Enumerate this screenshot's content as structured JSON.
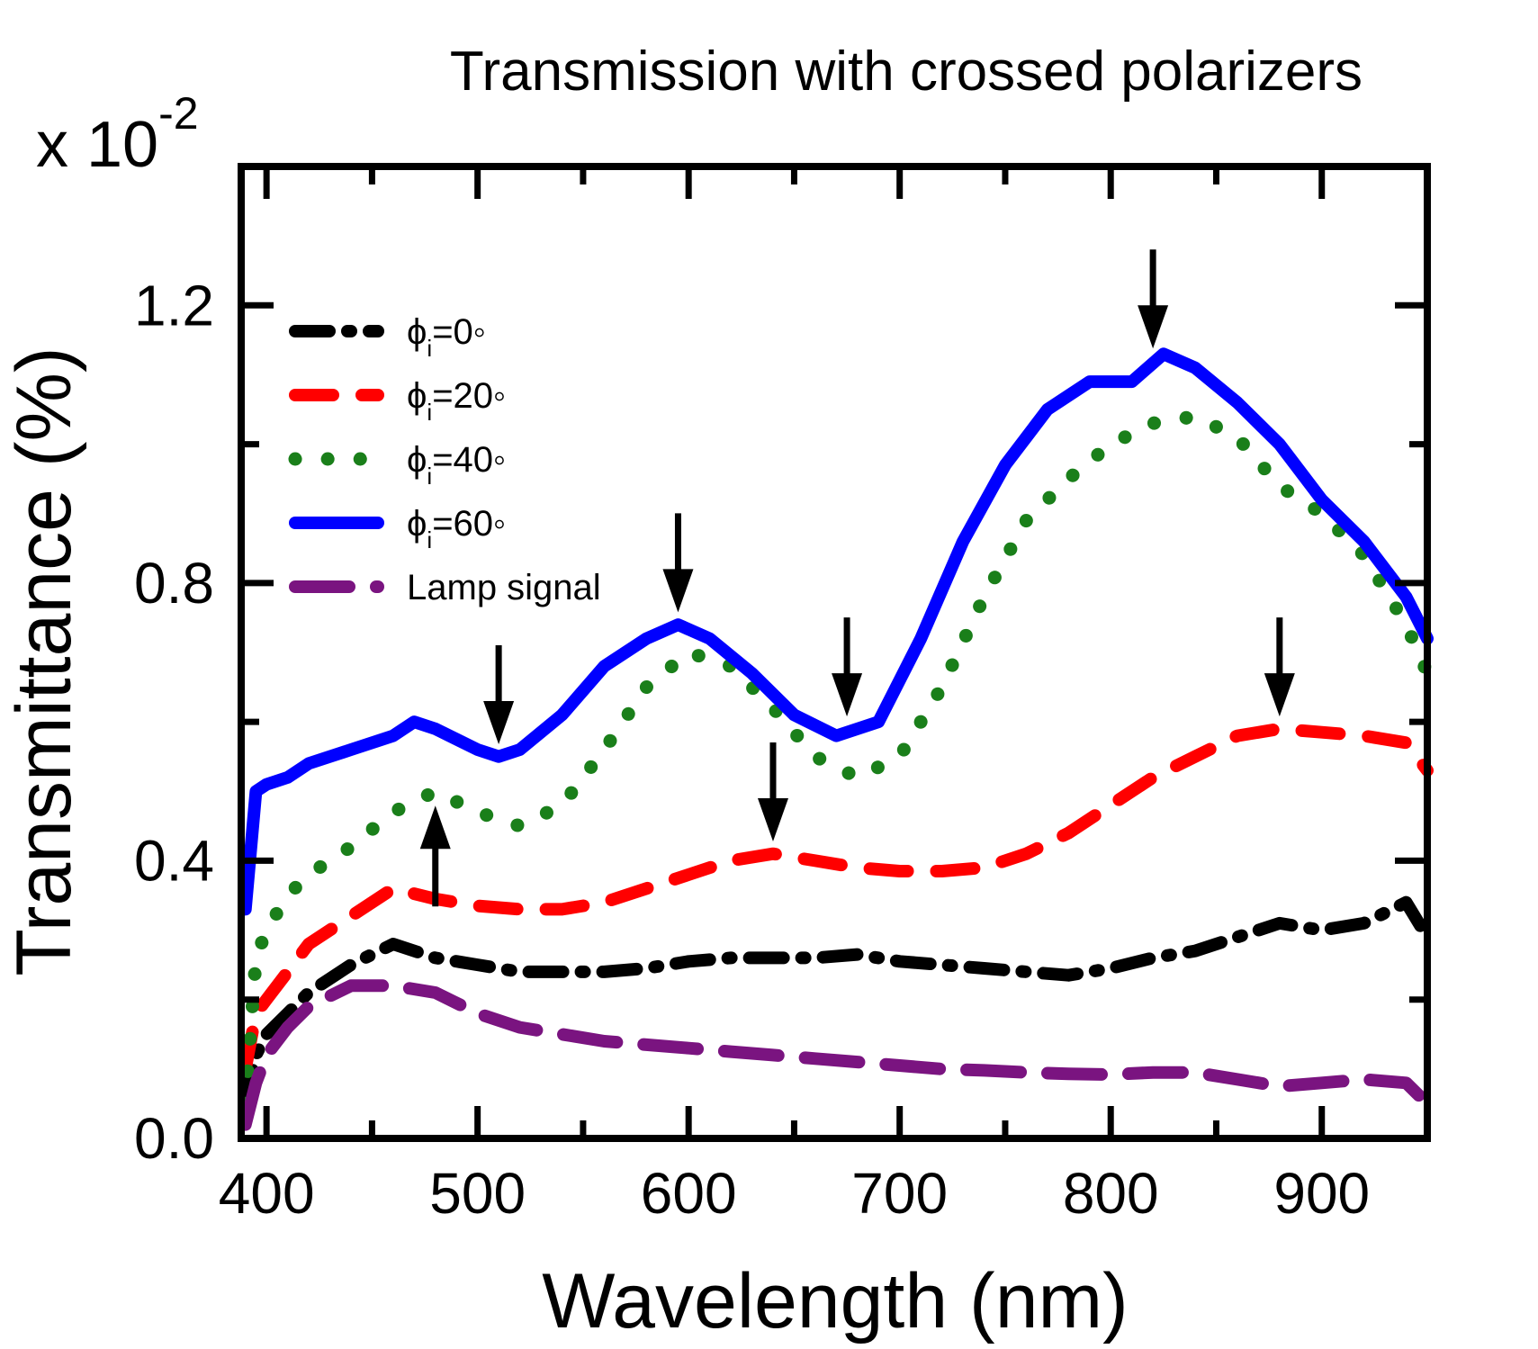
{
  "chart_data": {
    "type": "line",
    "title": "Transmission with crossed polarizers",
    "scale_note": "x 10",
    "scale_exponent": "-2",
    "xlabel": "Wavelength (nm)",
    "ylabel": "Transmittance (%)",
    "xlim": [
      388,
      950
    ],
    "ylim": [
      0.0,
      1.4
    ],
    "xticks": [
      "400",
      "500",
      "600",
      "700",
      "800",
      "900"
    ],
    "xtick_values": [
      400,
      500,
      600,
      700,
      800,
      900
    ],
    "yticks": [
      "0.0",
      "0.4",
      "0.8",
      "1.2"
    ],
    "ytick_values": [
      0.0,
      0.4,
      0.8,
      1.2
    ],
    "grid": false,
    "legend_position": "top-left",
    "series": [
      {
        "legend_symbol": "ϕ",
        "legend_sub": "i",
        "legend_value": "=0◦",
        "color": "#000000",
        "style": "dash-dot",
        "x": [
          390,
          395,
          400,
          410,
          420,
          440,
          460,
          480,
          500,
          520,
          540,
          560,
          580,
          600,
          620,
          640,
          660,
          680,
          700,
          720,
          740,
          760,
          780,
          800,
          820,
          840,
          860,
          880,
          900,
          920,
          940,
          950
        ],
        "y": [
          0.05,
          0.12,
          0.15,
          0.18,
          0.21,
          0.25,
          0.28,
          0.26,
          0.25,
          0.24,
          0.24,
          0.24,
          0.245,
          0.255,
          0.26,
          0.26,
          0.26,
          0.265,
          0.255,
          0.25,
          0.245,
          0.24,
          0.235,
          0.245,
          0.26,
          0.27,
          0.29,
          0.31,
          0.3,
          0.31,
          0.34,
          0.29
        ]
      },
      {
        "legend_symbol": "ϕ",
        "legend_sub": "i",
        "legend_value": "=20◦",
        "color": "#ff0000",
        "style": "dash",
        "x": [
          390,
          395,
          400,
          410,
          420,
          440,
          460,
          480,
          500,
          520,
          540,
          560,
          580,
          600,
          620,
          640,
          660,
          680,
          700,
          720,
          740,
          760,
          780,
          800,
          820,
          840,
          860,
          880,
          900,
          920,
          940,
          950
        ],
        "y": [
          0.1,
          0.18,
          0.2,
          0.24,
          0.28,
          0.32,
          0.36,
          0.345,
          0.335,
          0.33,
          0.33,
          0.34,
          0.36,
          0.38,
          0.4,
          0.41,
          0.4,
          0.39,
          0.385,
          0.385,
          0.39,
          0.41,
          0.44,
          0.48,
          0.52,
          0.55,
          0.58,
          0.59,
          0.585,
          0.58,
          0.57,
          0.53
        ]
      },
      {
        "legend_symbol": "ϕ",
        "legend_sub": "i",
        "legend_value": "=40◦",
        "color": "#1a7f1a",
        "style": "dot",
        "x": [
          390,
          395,
          400,
          410,
          420,
          440,
          460,
          480,
          500,
          520,
          540,
          560,
          580,
          600,
          620,
          640,
          660,
          680,
          700,
          720,
          740,
          760,
          780,
          800,
          820,
          840,
          860,
          880,
          900,
          920,
          940,
          950
        ],
        "y": [
          0.05,
          0.26,
          0.3,
          0.35,
          0.38,
          0.42,
          0.47,
          0.5,
          0.47,
          0.45,
          0.48,
          0.56,
          0.65,
          0.7,
          0.68,
          0.62,
          0.55,
          0.52,
          0.55,
          0.65,
          0.78,
          0.89,
          0.95,
          1.0,
          1.03,
          1.04,
          1.01,
          0.94,
          0.9,
          0.84,
          0.74,
          0.67
        ]
      },
      {
        "legend_symbol": "ϕ",
        "legend_sub": "i",
        "legend_value": "=60◦",
        "color": "#0000ff",
        "style": "solid",
        "x": [
          390,
          395,
          400,
          410,
          420,
          440,
          460,
          470,
          480,
          500,
          510,
          520,
          540,
          560,
          580,
          595,
          610,
          630,
          650,
          670,
          690,
          710,
          730,
          750,
          770,
          790,
          810,
          825,
          840,
          860,
          880,
          900,
          920,
          940,
          950
        ],
        "y": [
          0.33,
          0.5,
          0.51,
          0.52,
          0.54,
          0.56,
          0.58,
          0.6,
          0.59,
          0.56,
          0.55,
          0.56,
          0.61,
          0.68,
          0.72,
          0.74,
          0.72,
          0.67,
          0.61,
          0.58,
          0.6,
          0.72,
          0.86,
          0.97,
          1.05,
          1.09,
          1.09,
          1.13,
          1.11,
          1.06,
          1.0,
          0.92,
          0.86,
          0.78,
          0.72
        ]
      },
      {
        "legend_value": "Lamp signal",
        "color": "#7a1480",
        "style": "long-dash",
        "x": [
          390,
          395,
          400,
          410,
          420,
          440,
          460,
          480,
          500,
          520,
          540,
          560,
          580,
          600,
          620,
          640,
          660,
          680,
          700,
          720,
          740,
          760,
          780,
          800,
          820,
          840,
          860,
          880,
          900,
          920,
          940,
          950
        ],
        "y": [
          0.02,
          0.08,
          0.12,
          0.16,
          0.19,
          0.22,
          0.22,
          0.21,
          0.18,
          0.16,
          0.15,
          0.14,
          0.135,
          0.13,
          0.125,
          0.12,
          0.115,
          0.11,
          0.105,
          0.1,
          0.098,
          0.095,
          0.093,
          0.092,
          0.095,
          0.095,
          0.085,
          0.075,
          0.08,
          0.085,
          0.08,
          0.05
        ]
      }
    ],
    "annotations": [
      {
        "type": "arrow-down",
        "x": 510,
        "y": 0.56
      },
      {
        "type": "arrow-down",
        "x": 595,
        "y": 0.75
      },
      {
        "type": "arrow-down",
        "x": 675,
        "y": 0.6
      },
      {
        "type": "arrow-down",
        "x": 820,
        "y": 1.13
      },
      {
        "type": "arrow-down",
        "x": 880,
        "y": 0.6
      },
      {
        "type": "arrow-down",
        "x": 640,
        "y": 0.42
      },
      {
        "type": "arrow-up",
        "x": 480,
        "y": 0.5
      }
    ]
  }
}
